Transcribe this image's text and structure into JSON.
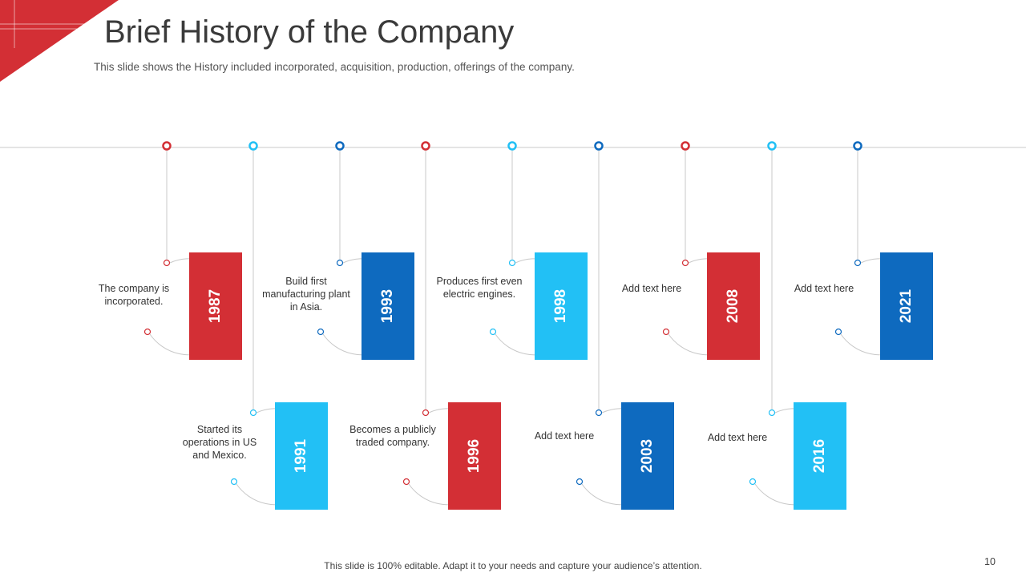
{
  "header": {
    "title": "Brief History of the Company",
    "subtitle": "This slide shows the History included incorporated, acquisition, production, offerings of the company."
  },
  "footer": {
    "text": "This slide is 100% editable. Adapt it to your needs and capture your audience’s attention.",
    "page_number": "10"
  },
  "colors": {
    "red": "#d32f35",
    "light_blue": "#22c0f5",
    "dark_blue": "#0e6abf",
    "line": "#c8c8c8"
  },
  "timeline": [
    {
      "year": "1987",
      "text": "The company is incorporated.",
      "color": "red"
    },
    {
      "year": "1991",
      "text": "Started its operations in US and Mexico.",
      "color": "light_blue"
    },
    {
      "year": "1993",
      "text": "Build first manufacturing plant in Asia.",
      "color": "dark_blue"
    },
    {
      "year": "1996",
      "text": "Becomes a publicly traded company.",
      "color": "red"
    },
    {
      "year": "1998",
      "text": "Produces first even electric engines.",
      "color": "light_blue"
    },
    {
      "year": "2003",
      "text": "Add text here",
      "color": "dark_blue"
    },
    {
      "year": "2008",
      "text": "Add text here",
      "color": "red"
    },
    {
      "year": "2016",
      "text": "Add text here",
      "color": "light_blue"
    },
    {
      "year": "2021",
      "text": "Add text here",
      "color": "dark_blue"
    }
  ]
}
